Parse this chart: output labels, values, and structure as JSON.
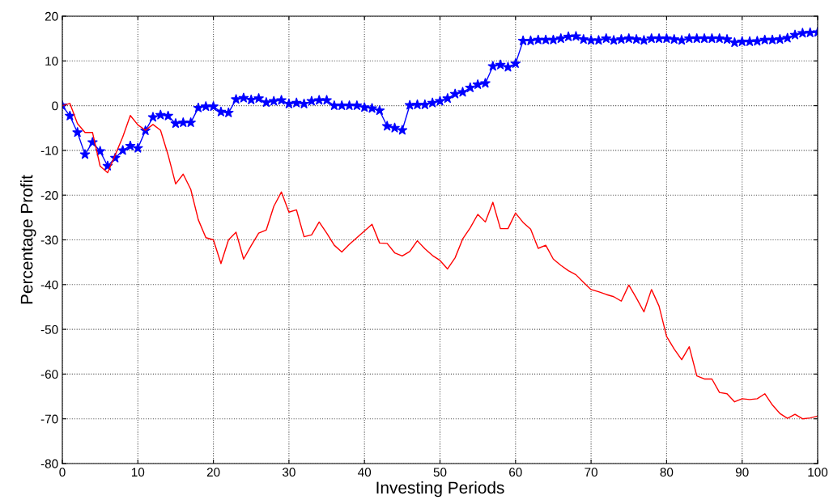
{
  "chart_data": {
    "type": "line",
    "xlabel": "Investing Periods",
    "ylabel": "Percentage Profit",
    "x": [
      0,
      1,
      2,
      3,
      4,
      5,
      6,
      7,
      8,
      9,
      10,
      11,
      12,
      13,
      14,
      15,
      16,
      17,
      18,
      19,
      20,
      21,
      22,
      23,
      24,
      25,
      26,
      27,
      28,
      29,
      30,
      31,
      32,
      33,
      34,
      35,
      36,
      37,
      38,
      39,
      40,
      41,
      42,
      43,
      44,
      45,
      46,
      47,
      48,
      49,
      50,
      51,
      52,
      53,
      54,
      55,
      56,
      57,
      58,
      59,
      60,
      61,
      62,
      63,
      64,
      65,
      66,
      67,
      68,
      69,
      70,
      71,
      72,
      73,
      74,
      75,
      76,
      77,
      78,
      79,
      80,
      81,
      82,
      83,
      84,
      85,
      86,
      87,
      88,
      89,
      90,
      91,
      92,
      93,
      94,
      95,
      96,
      97,
      98,
      99,
      100
    ],
    "series": [
      {
        "color": "#0000ff",
        "marker": "star",
        "values": [
          0,
          -2.3,
          -6,
          -10.9,
          -8.2,
          -10.2,
          -13.5,
          -11.7,
          -10,
          -9,
          -9.5,
          -5.6,
          -2.6,
          -2.1,
          -2.3,
          -4,
          -3.8,
          -3.8,
          -0.5,
          -0.2,
          -0.2,
          -1.4,
          -1.6,
          1.4,
          1.7,
          1.3,
          1.6,
          0.7,
          1,
          1.2,
          0.4,
          0.6,
          0.4,
          1,
          1.2,
          1.2,
          0,
          0,
          0,
          0,
          -0.4,
          -0.6,
          -1.1,
          -4.6,
          -5,
          -5.5,
          0.1,
          0.2,
          0.2,
          0.6,
          1,
          1.6,
          2.6,
          3,
          4,
          4.7,
          5,
          8.8,
          9.1,
          8.6,
          9.4,
          14.5,
          14.5,
          14.7,
          14.7,
          14.7,
          15,
          15.4,
          15.5,
          14.8,
          14.6,
          14.6,
          15,
          14.6,
          14.8,
          15,
          14.8,
          14.6,
          15,
          15,
          15,
          14.8,
          14.6,
          15,
          15,
          15,
          15,
          15,
          14.8,
          14.1,
          14.3,
          14.3,
          14.4,
          14.7,
          14.7,
          14.8,
          15.1,
          15.8,
          16.2,
          16.3,
          16.4
        ]
      },
      {
        "color": "#ff0000",
        "marker": "none",
        "values": [
          0,
          0.5,
          -4,
          -6,
          -6,
          -13.5,
          -15,
          -11,
          -7,
          -2.2,
          -4.3,
          -5.5,
          -4.2,
          -5.5,
          -11,
          -17.5,
          -15.3,
          -18.7,
          -25.5,
          -29.5,
          -30,
          -35.3,
          -30,
          -28.3,
          -34.3,
          -31.3,
          -28.5,
          -27.8,
          -22.5,
          -19.3,
          -23.8,
          -23.3,
          -29.3,
          -28.9,
          -26,
          -28.5,
          -31.2,
          -32.7,
          -31,
          -29.5,
          -28,
          -26.5,
          -30.7,
          -30.8,
          -32.9,
          -33.6,
          -32.6,
          -30.2,
          -32,
          -33.5,
          -34.6,
          -36.5,
          -34,
          -29.8,
          -27.3,
          -24.3,
          -26,
          -21.6,
          -27.5,
          -27.5,
          -24,
          -26.1,
          -27.6,
          -31.9,
          -31.2,
          -34.3,
          -35.7,
          -36.9,
          -37.8,
          -39.5,
          -41.1,
          -41.6,
          -42.2,
          -42.7,
          -43.7,
          -40.1,
          -43,
          -46.1,
          -41.1,
          -44.8,
          -51.6,
          -54.4,
          -56.8,
          -53.9,
          -60.4,
          -61.1,
          -61.1,
          -64.1,
          -64.4,
          -66.2,
          -65.5,
          -65.7,
          -65.5,
          -64.4,
          -66.9,
          -68.8,
          -69.9,
          -69,
          -70,
          -69.8,
          -69.4
        ]
      }
    ],
    "xlim": [
      0,
      100
    ],
    "xticks": [
      0,
      10,
      20,
      30,
      40,
      50,
      60,
      70,
      80,
      90,
      100
    ],
    "ylim": [
      -80,
      20
    ],
    "yticks": [
      -80,
      -70,
      -60,
      -50,
      -40,
      -30,
      -20,
      -10,
      0,
      10,
      20
    ],
    "grid": true,
    "line_style": "solid"
  }
}
